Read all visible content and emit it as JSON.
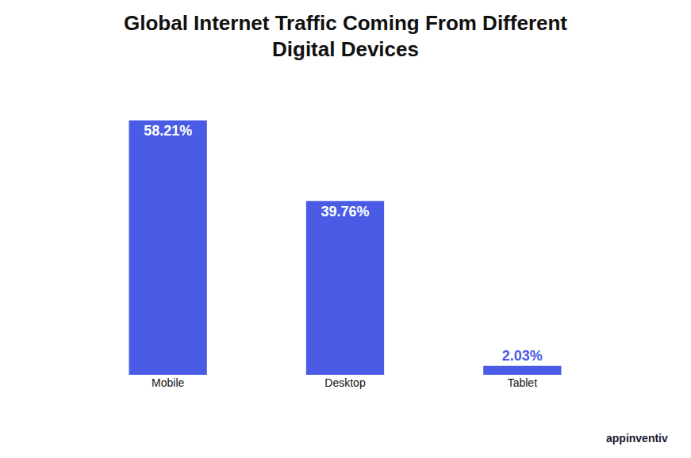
{
  "chart_data": {
    "type": "bar",
    "title": "Global Internet Traffic Coming From Different Digital Devices",
    "categories": [
      "Mobile",
      "Desktop",
      "Tablet"
    ],
    "values": [
      58.21,
      39.76,
      2.03
    ],
    "value_labels": [
      "58.21%",
      "39.76%",
      "2.03%"
    ],
    "color": "#4a5ce5",
    "ylim": [
      0,
      58.21
    ],
    "grid": false,
    "data_labels": true,
    "tick_labels": "x",
    "annotations": [
      "appinventiv"
    ]
  }
}
